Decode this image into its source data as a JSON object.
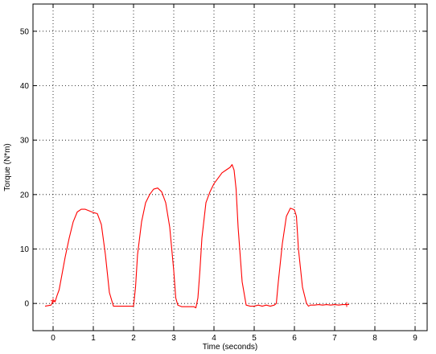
{
  "chart_data": {
    "type": "line",
    "title": "",
    "xlabel": "Time (seconds)",
    "ylabel": "Torque (N*m)",
    "xlim": [
      -0.5,
      9.3
    ],
    "ylim": [
      -5,
      55
    ],
    "xticks": [
      0,
      1,
      2,
      3,
      4,
      5,
      6,
      7,
      8,
      9
    ],
    "yticks": [
      0,
      10,
      20,
      30,
      40,
      50
    ],
    "grid": true,
    "grid_style": "dotted",
    "series": [
      {
        "color": "#ff0000",
        "x": [
          -0.2,
          -0.05,
          0.0,
          0.05,
          0.1,
          0.15,
          0.2,
          0.3,
          0.4,
          0.5,
          0.6,
          0.7,
          0.8,
          0.9,
          1.0,
          1.1,
          1.2,
          1.3,
          1.4,
          1.5,
          1.6,
          1.7,
          1.8,
          1.9,
          2.0,
          2.05,
          2.1,
          2.2,
          2.3,
          2.4,
          2.5,
          2.6,
          2.7,
          2.8,
          2.9,
          3.0,
          3.05,
          3.1,
          3.2,
          3.3,
          3.4,
          3.5,
          3.55,
          3.6,
          3.65,
          3.7,
          3.8,
          3.9,
          4.0,
          4.1,
          4.2,
          4.3,
          4.4,
          4.45,
          4.5,
          4.55,
          4.6,
          4.7,
          4.8,
          4.9,
          5.0,
          5.1,
          5.2,
          5.3,
          5.4,
          5.5,
          5.55,
          5.6,
          5.7,
          5.8,
          5.9,
          6.0,
          6.05,
          6.1,
          6.2,
          6.3,
          6.35,
          6.4,
          6.5,
          6.6,
          6.7,
          6.8,
          6.9,
          7.0,
          7.1,
          7.2,
          7.3
        ],
        "y": [
          -0.5,
          -0.3,
          0.5,
          0.3,
          1.5,
          2.5,
          4.5,
          8.5,
          12.0,
          15.0,
          16.8,
          17.3,
          17.3,
          17.0,
          16.7,
          16.5,
          14.5,
          9.0,
          2.0,
          -0.5,
          -0.5,
          -0.5,
          -0.5,
          -0.5,
          -0.5,
          3.0,
          9.0,
          15.0,
          18.5,
          20.0,
          21.0,
          21.2,
          20.5,
          18.5,
          14.0,
          6.0,
          1.0,
          -0.3,
          -0.6,
          -0.6,
          -0.6,
          -0.6,
          -0.8,
          1.0,
          6.0,
          12.0,
          18.5,
          20.5,
          22.0,
          23.0,
          24.0,
          24.5,
          25.0,
          25.5,
          24.5,
          21.0,
          14.0,
          4.0,
          -0.3,
          -0.5,
          -0.5,
          -0.3,
          -0.5,
          -0.3,
          -0.5,
          -0.3,
          0.0,
          4.0,
          11.0,
          16.0,
          17.5,
          17.2,
          16.0,
          10.0,
          3.0,
          0.0,
          -0.5,
          -0.3,
          -0.3,
          -0.2,
          -0.3,
          -0.2,
          -0.3,
          -0.2,
          -0.3,
          -0.2,
          -0.2
        ]
      }
    ]
  }
}
